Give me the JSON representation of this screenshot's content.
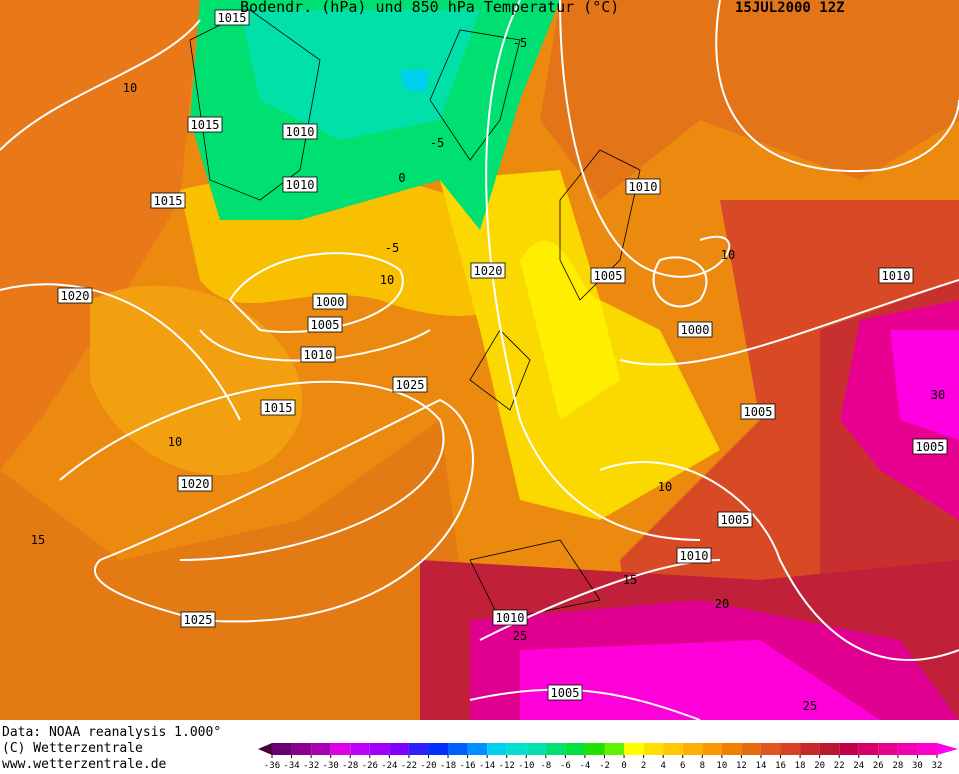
{
  "header": {
    "title": "Bodendr. (hPa) und 850 hPa Temperatur (°C)",
    "date": "15JUL2000 12Z"
  },
  "footer": {
    "data": "Data: NOAA reanalysis 1.000°",
    "copyright": "(C) Wetterzentrale",
    "url": "www.wetterzentrale.de"
  },
  "isobar_labels": [
    "1015",
    "1015",
    "1010",
    "1010",
    "1015",
    "1020",
    "1000",
    "1005",
    "1010",
    "1025",
    "1015",
    "1020",
    "1010",
    "1005",
    "1000",
    "1010",
    "1005",
    "1005",
    "1005",
    "1010",
    "1020",
    "1025",
    "1010",
    "1005"
  ],
  "temperature_labels": [
    "10",
    "-5",
    "-5",
    "0",
    "-5",
    "10",
    "10",
    "10",
    "15",
    "10",
    "15",
    "20",
    "25",
    "25",
    "30"
  ],
  "legend": {
    "ticks": [
      -36,
      -34,
      -32,
      -30,
      -28,
      -26,
      -24,
      -22,
      -20,
      -18,
      -16,
      -14,
      -12,
      -10,
      -8,
      -6,
      -4,
      -2,
      0,
      2,
      4,
      6,
      8,
      10,
      12,
      14,
      16,
      18,
      20,
      22,
      24,
      26,
      28,
      30,
      32
    ],
    "colors": [
      "#4a0040",
      "#6a0070",
      "#8a0090",
      "#a800b0",
      "#e000e8",
      "#c000ff",
      "#a000ff",
      "#8000ff",
      "#3020ff",
      "#0030ff",
      "#0060ff",
      "#0090ff",
      "#00d0f0",
      "#00e0d0",
      "#00e0b0",
      "#00e070",
      "#00e040",
      "#20e000",
      "#60f000",
      "#ffff00",
      "#ffe000",
      "#ffc800",
      "#ffb000",
      "#fa9800",
      "#f08000",
      "#e86a10",
      "#e05520",
      "#d84028",
      "#c82828",
      "#b81830",
      "#c00048",
      "#d80068",
      "#e80090",
      "#f000b0",
      "#ff00d0",
      "#ff00f0"
    ]
  }
}
